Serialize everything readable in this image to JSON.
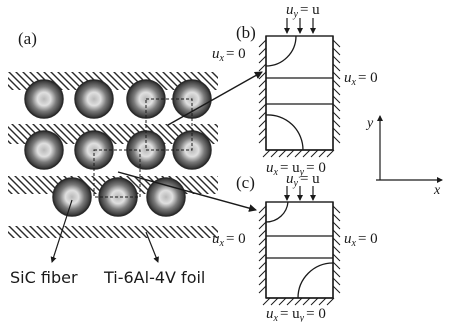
{
  "panels": {
    "a": "(a)",
    "b": "(b)",
    "c": "(c)"
  },
  "labels": {
    "fiber": "SiC fiber",
    "foil": "Ti-6Al-4V foil"
  },
  "bc_b": {
    "top_var": "u",
    "top_sub": "y",
    "top_rhs": "= u",
    "left_var": "u",
    "left_sub": "x",
    "left_rhs": "= 0",
    "right_var": "u",
    "right_sub": "x",
    "right_rhs": "= 0",
    "bottom_var1": "u",
    "bottom_sub1": "x",
    "bottom_mid": "= u",
    "bottom_sub2": "y",
    "bottom_rhs": "= 0"
  },
  "bc_c": {
    "top_var": "u",
    "top_sub": "y",
    "top_rhs": "= u",
    "left_var": "u",
    "left_sub": "x",
    "left_rhs": "= 0",
    "right_var": "u",
    "right_sub": "x",
    "right_rhs": "= 0",
    "bottom_var1": "u",
    "bottom_sub1": "x",
    "bottom_mid": "= u",
    "bottom_sub2": "y",
    "bottom_rhs": "= 0"
  },
  "axes": {
    "x": "x",
    "y": "y"
  },
  "colors": {
    "ink": "#1a1a1a",
    "fiber_dark": "#3a3a3a",
    "fiber_light": "#d8d8d8"
  }
}
